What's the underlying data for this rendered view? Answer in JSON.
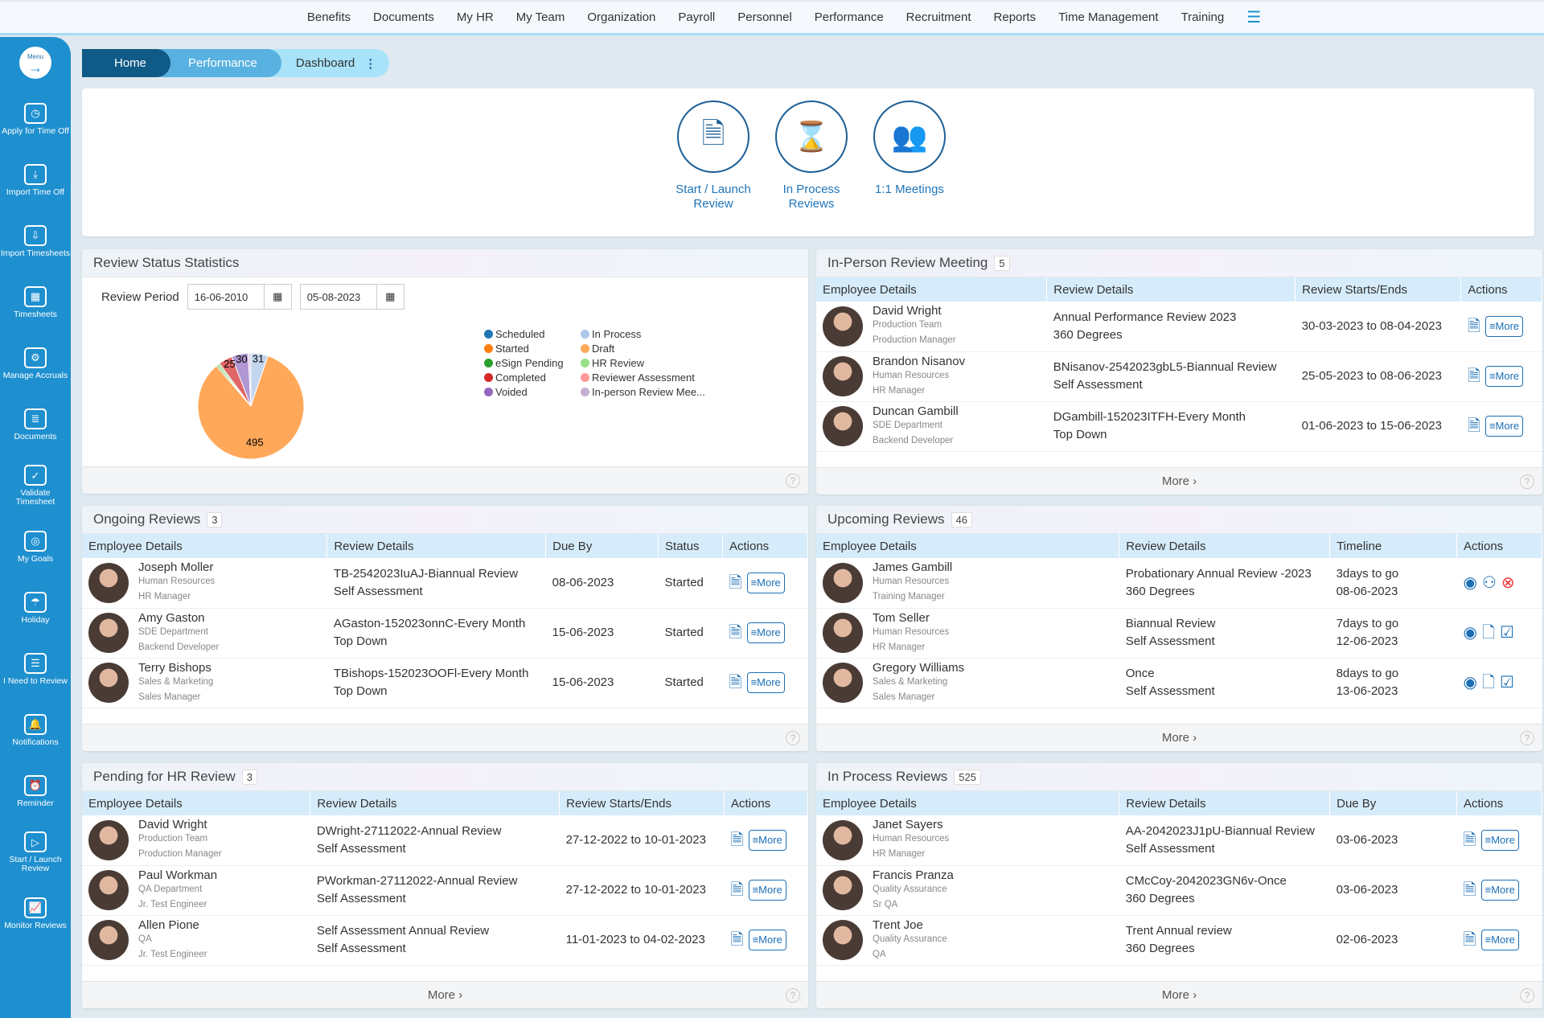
{
  "topnav": [
    "Benefits",
    "Documents",
    "My HR",
    "My Team",
    "Organization",
    "Payroll",
    "Personnel",
    "Performance",
    "Recruitment",
    "Reports",
    "Time Management",
    "Training"
  ],
  "sidebar": {
    "menu": "Menu",
    "items": [
      {
        "label": "Apply for Time Off",
        "icon": "clock-icon",
        "g": "◷"
      },
      {
        "label": "Import Time Off",
        "icon": "import-user-icon",
        "g": "⤓"
      },
      {
        "label": "Import Timesheets",
        "icon": "import-timesheet-icon",
        "g": "⇩"
      },
      {
        "label": "Timesheets",
        "icon": "calendar-icon",
        "g": "▦"
      },
      {
        "label": "Manage Accruals",
        "icon": "gear-icon",
        "g": "⚙"
      },
      {
        "label": "Documents",
        "icon": "document-icon",
        "g": "≣"
      },
      {
        "label": "Validate Timesheet",
        "icon": "check-icon",
        "g": "✓"
      },
      {
        "label": "My Goals",
        "icon": "target-icon",
        "g": "◎"
      },
      {
        "label": "Holiday",
        "icon": "umbrella-icon",
        "g": "☂"
      },
      {
        "label": "I Need to Review",
        "icon": "review-icon",
        "g": "☰"
      },
      {
        "label": "Notifications",
        "icon": "bell-icon",
        "g": "🔔"
      },
      {
        "label": "Reminder",
        "icon": "alarm-icon",
        "g": "⏰"
      },
      {
        "label": "Start / Launch Review",
        "icon": "launch-review-icon",
        "g": "▷"
      },
      {
        "label": "Monitor Reviews",
        "icon": "monitor-icon",
        "g": "📈"
      }
    ]
  },
  "breadcrumb": {
    "home": "Home",
    "performance": "Performance",
    "dashboard": "Dashboard"
  },
  "quick_actions": [
    {
      "label": "Start / Launch Review",
      "icon": "launch-review-icon",
      "g": "🗎"
    },
    {
      "label": "In Process Reviews",
      "icon": "hourglass-doc-icon",
      "g": "⌛"
    },
    {
      "label": "1:1 Meetings",
      "icon": "meeting-icon",
      "g": "👥"
    }
  ],
  "stats": {
    "title": "Review Status Statistics",
    "period_label": "Review Period",
    "from": "16-06-2010",
    "to": "05-08-2023"
  },
  "chart_data": {
    "type": "pie",
    "title": "Review Status Statistics",
    "legend": [
      {
        "name": "Scheduled",
        "color": "#1f77b4"
      },
      {
        "name": "In Process",
        "color": "#aec7e8"
      },
      {
        "name": "Started",
        "color": "#ff7f0e"
      },
      {
        "name": "Draft",
        "color": "#ffa85a"
      },
      {
        "name": "eSign Pending",
        "color": "#2ca02c"
      },
      {
        "name": "HR Review",
        "color": "#98df8a"
      },
      {
        "name": "Completed",
        "color": "#d62728"
      },
      {
        "name": "Reviewer Assessment",
        "color": "#ff9896"
      },
      {
        "name": "Voided",
        "color": "#9467bd"
      },
      {
        "name": "In-person Review Mee...",
        "color": "#c5b0d5"
      }
    ],
    "slices": [
      {
        "name": "In Process",
        "value": 31,
        "color": "#c4d6ee"
      },
      {
        "name": "Draft",
        "value": 495,
        "color": "#ffa85a"
      },
      {
        "name": "eSign Pending",
        "value": 3,
        "color": "#5cb85c"
      },
      {
        "name": "HR Review",
        "value": 4,
        "color": "#98df8a"
      },
      {
        "name": "Reviewer Assessment",
        "value": 25,
        "color": "#e06666"
      },
      {
        "name": "Voided",
        "value": 30,
        "color": "#b197d4"
      },
      {
        "name": "In-person Review Mee...",
        "value": 5,
        "color": "#ddd0ea"
      }
    ],
    "labels": [
      "31",
      "495",
      "25",
      "30"
    ]
  },
  "more_label": "More",
  "more_link": "More ›",
  "panels": {
    "inperson": {
      "title": "In-Person Review Meeting",
      "count": "5",
      "cols": [
        "Employee Details",
        "Review Details",
        "Review Starts/Ends",
        "Actions"
      ],
      "rows": [
        [
          "David Wright",
          "Production Team",
          "Production Manager",
          "Annual Performance Review 2023",
          "360 Degrees",
          "30-03-2023 to 08-04-2023"
        ],
        [
          "Brandon Nisanov",
          "Human Resources",
          "HR Manager",
          "BNisanov-2542023gbL5-Biannual Review",
          "Self Assessment",
          "25-05-2023 to 08-06-2023"
        ],
        [
          "Duncan Gambill",
          "SDE Department",
          "Backend Developer",
          "DGambill-152023ITFH-Every Month",
          "Top Down",
          "01-06-2023 to 15-06-2023"
        ]
      ]
    },
    "ongoing": {
      "title": "Ongoing Reviews",
      "count": "3",
      "cols": [
        "Employee Details",
        "Review Details",
        "Due By",
        "Status",
        "Actions"
      ],
      "rows": [
        [
          "Joseph Moller",
          "Human Resources",
          "HR Manager",
          "TB-2542023IuAJ-Biannual Review",
          "Self Assessment",
          "08-06-2023",
          "Started"
        ],
        [
          "Amy Gaston",
          "SDE Department",
          "Backend Developer",
          "AGaston-152023onnC-Every Month",
          "Top Down",
          "15-06-2023",
          "Started"
        ],
        [
          "Terry Bishops",
          "Sales & Marketing",
          "Sales Manager",
          "TBishops-152023OOFl-Every Month",
          "Top Down",
          "15-06-2023",
          "Started"
        ]
      ]
    },
    "upcoming": {
      "title": "Upcoming Reviews",
      "count": "46",
      "cols": [
        "Employee Details",
        "Review Details",
        "Timeline",
        "Actions"
      ],
      "rows": [
        [
          "James Gambill",
          "Human Resources",
          "Training Manager",
          "Probationary Annual Review -2023",
          "360 Degrees",
          "3days to go",
          "08-06-2023"
        ],
        [
          "Tom Seller",
          "Human Resources",
          "HR Manager",
          "Biannual Review",
          "Self Assessment",
          "7days to go",
          "12-06-2023"
        ],
        [
          "Gregory Williams",
          "Sales & Marketing",
          "Sales Manager",
          "Once",
          "Self Assessment",
          "8days to go",
          "13-06-2023"
        ]
      ]
    },
    "hr": {
      "title": "Pending for HR Review",
      "count": "3",
      "cols": [
        "Employee Details",
        "Review Details",
        "Review Starts/Ends",
        "Actions"
      ],
      "rows": [
        [
          "David Wright",
          "Production Team",
          "Production Manager",
          "DWright-27112022-Annual Review",
          "Self Assessment",
          "27-12-2022 to 10-01-2023"
        ],
        [
          "Paul Workman",
          "QA Department",
          "Jr. Test Engineer",
          "PWorkman-27112022-Annual Review",
          "Self Assessment",
          "27-12-2022 to 10-01-2023"
        ],
        [
          "Allen Pione",
          "QA",
          "Jr. Test Engineer",
          "Self Assessment Annual Review",
          "Self Assessment",
          "11-01-2023 to 04-02-2023"
        ]
      ]
    },
    "inprocess": {
      "title": "In Process Reviews",
      "count": "525",
      "cols": [
        "Employee Details",
        "Review Details",
        "Due By",
        "Actions"
      ],
      "rows": [
        [
          "Janet Sayers",
          "Human Resources",
          "HR Manager",
          "AA-2042023J1pU-Biannual Review",
          "Self Assessment",
          "03-06-2023"
        ],
        [
          "Francis Pranza",
          "Quality Assurance",
          "Sr QA",
          "CMcCoy-2042023GN6v-Once",
          "360 Degrees",
          "03-06-2023"
        ],
        [
          "Trent Joe",
          "Quality Assurance",
          "QA",
          "Trent Annual review",
          "360 Degrees",
          "02-06-2023"
        ]
      ]
    }
  }
}
